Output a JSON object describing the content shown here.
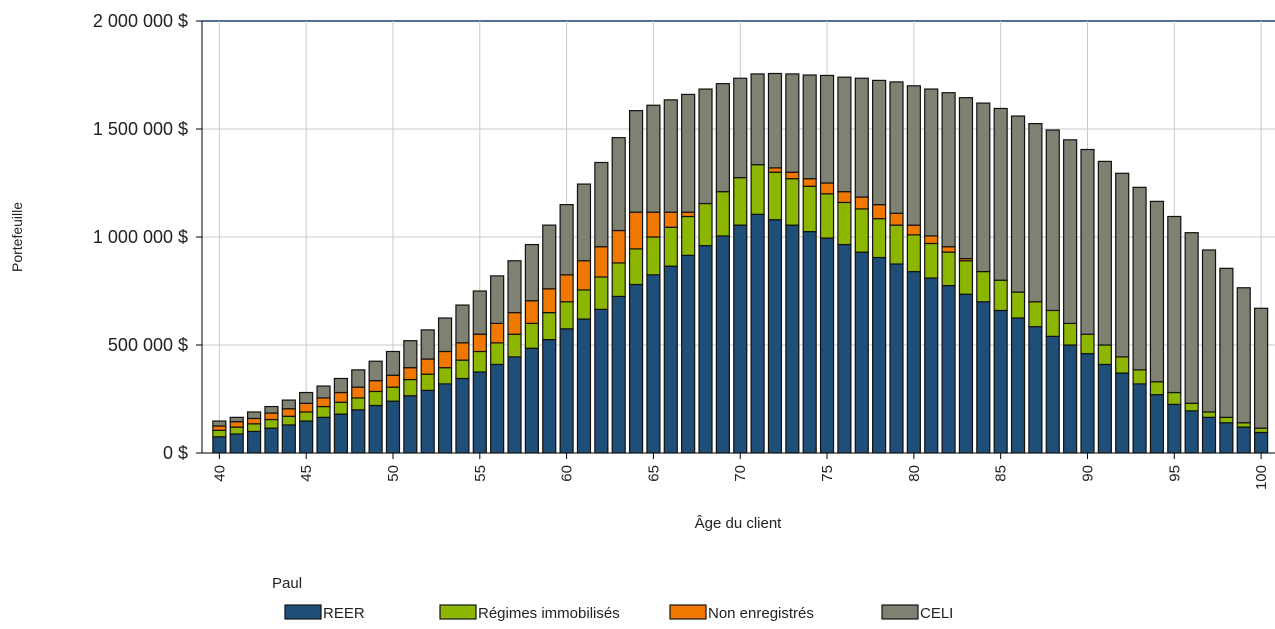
{
  "chart_data": {
    "type": "stacked_bar",
    "y_label": "Portefeuille",
    "x_label": "Âge du client",
    "legend_title": "Paul",
    "x": [
      40,
      41,
      42,
      43,
      44,
      45,
      46,
      47,
      48,
      49,
      50,
      51,
      52,
      53,
      54,
      55,
      56,
      57,
      58,
      59,
      60,
      61,
      62,
      63,
      64,
      65,
      66,
      67,
      68,
      69,
      70,
      71,
      72,
      73,
      74,
      75,
      76,
      77,
      78,
      79,
      80,
      81,
      82,
      83,
      84,
      85,
      86,
      87,
      88,
      89,
      90,
      91,
      92,
      93,
      94,
      95,
      96,
      97,
      98,
      99,
      100
    ],
    "xlim": [
      39,
      100.8
    ],
    "xticks": [
      40,
      45,
      50,
      55,
      60,
      65,
      70,
      75,
      80,
      85,
      90,
      95,
      100
    ],
    "ylim": [
      0,
      2000000
    ],
    "yticks": [
      {
        "value": 0,
        "label": "0 $"
      },
      {
        "value": 500000,
        "label": "500 000 $"
      },
      {
        "value": 1000000,
        "label": "1 000 000 $"
      },
      {
        "value": 1500000,
        "label": "1 500 000 $"
      },
      {
        "value": 2000000,
        "label": "2 000 000 $"
      }
    ],
    "grid": true,
    "series": [
      {
        "name": "REER",
        "color": "#1f4e79",
        "values": [
          75000,
          88000,
          100000,
          115000,
          130000,
          148000,
          165000,
          180000,
          200000,
          220000,
          240000,
          265000,
          290000,
          320000,
          345000,
          375000,
          410000,
          445000,
          485000,
          525000,
          575000,
          620000,
          665000,
          725000,
          780000,
          825000,
          865000,
          915000,
          960000,
          1005000,
          1055000,
          1105000,
          1080000,
          1055000,
          1025000,
          995000,
          965000,
          930000,
          905000,
          875000,
          840000,
          810000,
          775000,
          735000,
          700000,
          660000,
          625000,
          585000,
          540000,
          500000,
          460000,
          410000,
          370000,
          320000,
          270000,
          225000,
          195000,
          165000,
          140000,
          120000,
          95000
        ]
      },
      {
        "name": "Régimes immobilisés",
        "color": "#8db600",
        "values": [
          30000,
          32000,
          35000,
          40000,
          40000,
          42000,
          50000,
          55000,
          55000,
          65000,
          65000,
          75000,
          75000,
          75000,
          85000,
          95000,
          100000,
          105000,
          115000,
          125000,
          125000,
          135000,
          150000,
          155000,
          165000,
          175000,
          180000,
          180000,
          195000,
          205000,
          220000,
          230000,
          220000,
          215000,
          210000,
          205000,
          195000,
          200000,
          180000,
          180000,
          170000,
          160000,
          155000,
          155000,
          140000,
          140000,
          120000,
          115000,
          120000,
          100000,
          90000,
          90000,
          75000,
          65000,
          60000,
          55000,
          35000,
          25000,
          25000,
          20000,
          20000
        ]
      },
      {
        "name": "Non enregistrés",
        "color": "#f07800",
        "values": [
          20000,
          25000,
          25000,
          30000,
          35000,
          40000,
          40000,
          45000,
          50000,
          50000,
          55000,
          55000,
          70000,
          75000,
          80000,
          80000,
          90000,
          100000,
          105000,
          110000,
          125000,
          135000,
          140000,
          150000,
          170000,
          115000,
          70000,
          20000,
          0,
          0,
          0,
          0,
          20000,
          30000,
          35000,
          50000,
          50000,
          55000,
          65000,
          55000,
          45000,
          35000,
          25000,
          10000,
          0,
          0,
          0,
          0,
          0,
          0,
          0,
          0,
          0,
          0,
          0,
          0,
          0,
          0,
          0,
          0,
          0
        ]
      },
      {
        "name": "CELI",
        "color": "#7f8272",
        "values": [
          23000,
          20000,
          30000,
          30000,
          40000,
          50000,
          55000,
          65000,
          80000,
          90000,
          110000,
          125000,
          135000,
          155000,
          175000,
          200000,
          220000,
          240000,
          260000,
          295000,
          325000,
          355000,
          390000,
          430000,
          470000,
          495000,
          520000,
          545000,
          530000,
          500000,
          460000,
          420000,
          437000,
          455000,
          480000,
          498000,
          530000,
          550000,
          575000,
          608000,
          645000,
          680000,
          713000,
          745000,
          780000,
          795000,
          815000,
          825000,
          835000,
          850000,
          855000,
          850000,
          850000,
          845000,
          835000,
          815000,
          790000,
          750000,
          690000,
          625000,
          555000
        ]
      }
    ]
  }
}
